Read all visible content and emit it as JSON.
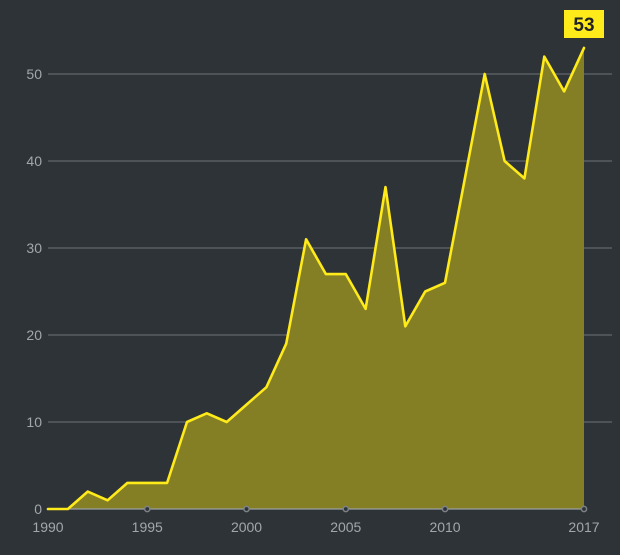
{
  "chart_data": {
    "type": "area",
    "title": "",
    "xlabel": "",
    "ylabel": "",
    "x": [
      1990,
      1991,
      1992,
      1993,
      1994,
      1995,
      1996,
      1997,
      1998,
      1999,
      2000,
      2001,
      2002,
      2003,
      2004,
      2005,
      2006,
      2007,
      2008,
      2009,
      2010,
      2011,
      2012,
      2013,
      2014,
      2015,
      2016,
      2017
    ],
    "values": [
      0,
      0,
      2,
      1,
      3,
      3,
      3,
      10,
      11,
      10,
      12,
      14,
      19,
      31,
      27,
      27,
      23,
      37,
      21,
      25,
      26,
      38,
      50,
      40,
      38,
      52,
      48,
      53
    ],
    "xlim": [
      1990,
      2017
    ],
    "ylim": [
      0,
      53
    ],
    "x_ticks": [
      1990,
      1995,
      2000,
      2005,
      2010,
      2017
    ],
    "x_tick_labels": [
      "1990",
      "1995",
      "2000",
      "2005",
      "2010",
      "2017"
    ],
    "y_ticks": [
      0,
      10,
      20,
      30,
      40,
      50
    ],
    "y_tick_labels": [
      "0",
      "10",
      "20",
      "30",
      "40",
      "50"
    ],
    "grid": true,
    "end_label": "53",
    "colors": {
      "background": "#2e3338",
      "line": "#ffea1a",
      "area": "#847f24",
      "grid": "#6e7378",
      "tick_text": "#a2a7ab",
      "badge": "#ffea1a"
    }
  }
}
